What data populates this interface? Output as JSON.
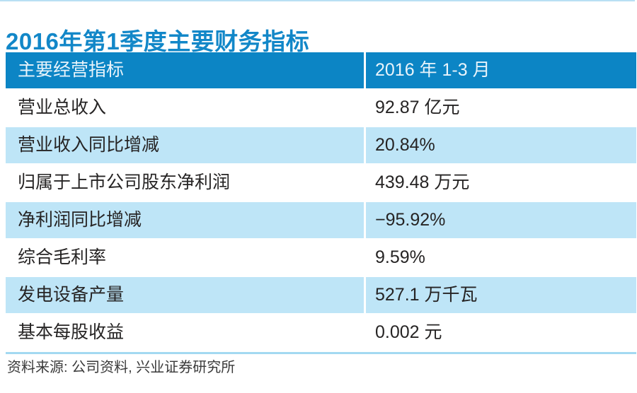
{
  "chart_data": {
    "type": "table",
    "title": "2016年第1季度主要财务指标",
    "columns": [
      "主要经营指标",
      "2016 年 1-3 月"
    ],
    "rows": [
      [
        "营业总收入",
        "92.87 亿元"
      ],
      [
        "营业收入同比增减",
        "20.84%"
      ],
      [
        "归属于上市公司股东净利润",
        "439.48 万元"
      ],
      [
        "净利润同比增减",
        "−95.92%"
      ],
      [
        "综合毛利率",
        "9.59%"
      ],
      [
        "发电设备产量",
        "527.1 万千瓦"
      ],
      [
        "基本每股收益",
        "0.002 元"
      ]
    ],
    "source_note": "资料来源: 公司资料, 兴业证券研究所",
    "layout": {
      "striping": "alternate rows light blue",
      "header_style": "solid blue bar with white text",
      "column_divider": "white 3px vertical gap"
    }
  },
  "colors": {
    "title-blue": "#1287c8",
    "header-blue": "#0c85c5",
    "row-alt-blue": "#bee5f7",
    "divider-blue": "#a3d9f1",
    "top-line-blue": "#b9e0f4",
    "text-dark": "#262424",
    "header-text": "#e9f4fb",
    "source-text": "#3a3a3a"
  }
}
